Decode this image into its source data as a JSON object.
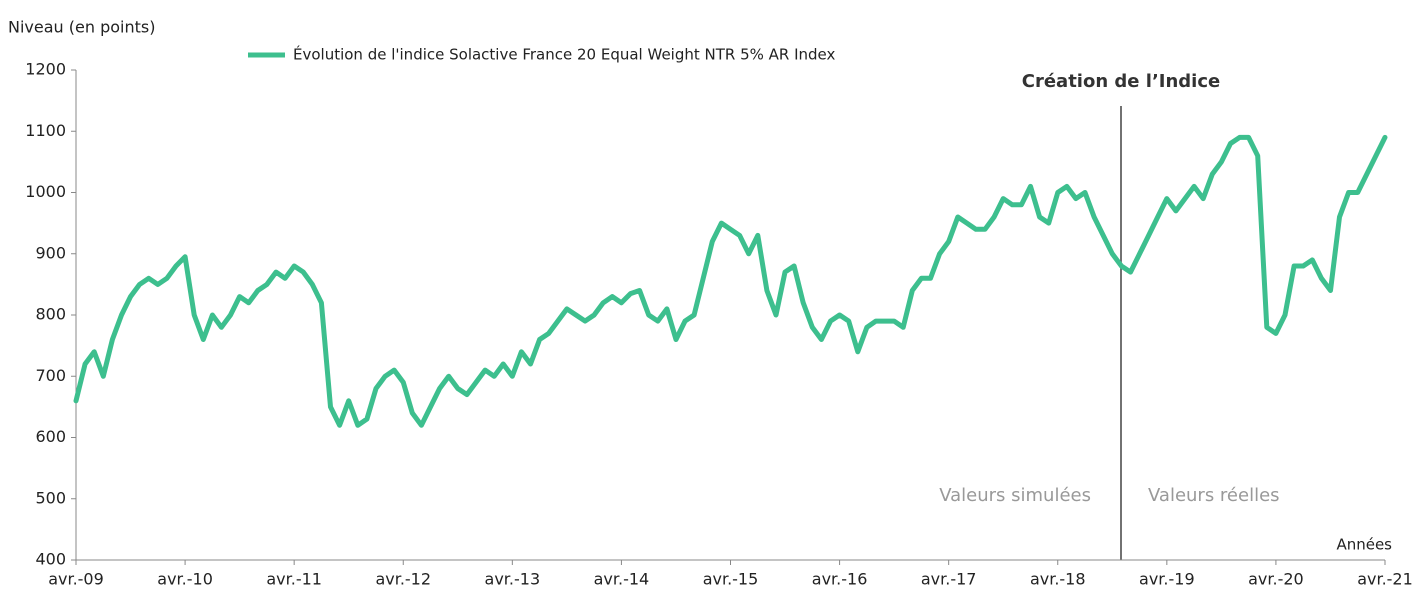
{
  "chart_data": {
    "type": "line",
    "y_label": "Niveau (en points)",
    "x_label": "Années",
    "annotations": [
      "Création de l’Indice",
      "Valeurs simulées",
      "Valeurs réelles"
    ],
    "categories": [
      "avr.-09",
      null,
      null,
      null,
      null,
      null,
      null,
      null,
      null,
      null,
      null,
      null,
      "avr.-10",
      null,
      null,
      null,
      null,
      null,
      null,
      null,
      null,
      null,
      null,
      null,
      "avr.-11",
      null,
      null,
      null,
      null,
      null,
      null,
      null,
      null,
      null,
      null,
      null,
      "avr.-12",
      null,
      null,
      null,
      null,
      null,
      null,
      null,
      null,
      null,
      null,
      null,
      "avr.-13",
      null,
      null,
      null,
      null,
      null,
      null,
      null,
      null,
      null,
      null,
      null,
      "avr.-14",
      null,
      null,
      null,
      null,
      null,
      null,
      null,
      null,
      null,
      null,
      null,
      "avr.-15",
      null,
      null,
      null,
      null,
      null,
      null,
      null,
      null,
      null,
      null,
      null,
      "avr.-16",
      null,
      null,
      null,
      null,
      null,
      null,
      null,
      null,
      null,
      null,
      null,
      "avr.-17",
      null,
      null,
      null,
      null,
      null,
      null,
      null,
      null,
      null,
      null,
      null,
      "avr.-18",
      null,
      null,
      null,
      null,
      null,
      null,
      null,
      null,
      null,
      null,
      null,
      "avr.-19",
      null,
      null,
      null,
      null,
      null,
      null,
      null,
      null,
      null,
      null,
      null,
      "avr.-20",
      null,
      null,
      null,
      null,
      null,
      null,
      null,
      null,
      null,
      null,
      null,
      "avr.-21"
    ],
    "series": [
      {
        "name": "Évolution de l'indice Solactive France 20 Equal Weight NTR 5% AR Index",
        "color": "#3dbf8e",
        "values": [
          660,
          720,
          740,
          700,
          760,
          800,
          830,
          850,
          860,
          850,
          860,
          880,
          895,
          800,
          760,
          800,
          780,
          800,
          830,
          820,
          840,
          850,
          870,
          860,
          880,
          870,
          850,
          820,
          650,
          620,
          660,
          620,
          630,
          680,
          700,
          710,
          690,
          640,
          620,
          650,
          680,
          700,
          680,
          670,
          690,
          710,
          700,
          720,
          700,
          740,
          720,
          760,
          770,
          790,
          810,
          800,
          790,
          800,
          820,
          830,
          820,
          835,
          840,
          800,
          790,
          810,
          760,
          790,
          800,
          860,
          920,
          950,
          940,
          930,
          900,
          930,
          840,
          800,
          870,
          880,
          820,
          780,
          760,
          790,
          800,
          790,
          740,
          780,
          790,
          790,
          790,
          780,
          840,
          860,
          860,
          900,
          920,
          960,
          950,
          940,
          940,
          960,
          990,
          980,
          980,
          1010,
          960,
          950,
          1000,
          1010,
          990,
          1000,
          960,
          930,
          900,
          880,
          870,
          900,
          930,
          960,
          990,
          970,
          990,
          1010,
          990,
          1030,
          1050,
          1080,
          1090,
          1090,
          1060,
          780,
          770,
          800,
          880,
          880,
          890,
          860,
          840,
          960,
          1000,
          1000,
          1030,
          1060,
          1090
        ]
      }
    ],
    "ylim": [
      400,
      1200
    ],
    "yticks": [
      400,
      500,
      600,
      700,
      800,
      900,
      1000,
      1100,
      1200
    ],
    "grid": false
  }
}
